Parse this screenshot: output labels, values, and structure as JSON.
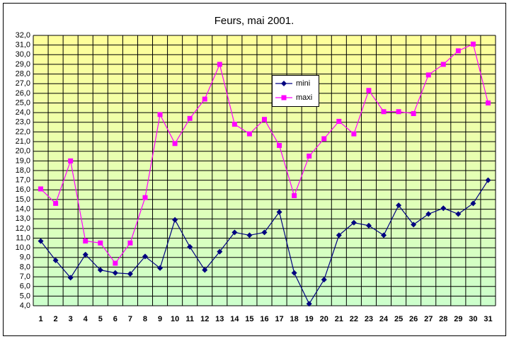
{
  "chart_data": {
    "type": "line",
    "title": "Feurs, mai 2001.",
    "categories": [
      "1",
      "2",
      "3",
      "4",
      "5",
      "6",
      "7",
      "8",
      "9",
      "10",
      "11",
      "12",
      "13",
      "14",
      "15",
      "16",
      "17",
      "18",
      "19",
      "20",
      "21",
      "22",
      "23",
      "24",
      "25",
      "26",
      "27",
      "28",
      "29",
      "30",
      "31"
    ],
    "series": [
      {
        "name": "mini",
        "color": "#000080",
        "marker": "diamond",
        "values": [
          10.7,
          8.7,
          6.9,
          9.3,
          7.7,
          7.4,
          7.3,
          9.1,
          7.9,
          12.9,
          10.1,
          7.7,
          9.6,
          11.6,
          11.3,
          11.6,
          13.7,
          7.4,
          4.2,
          6.7,
          11.3,
          12.6,
          12.3,
          11.3,
          14.4,
          12.4,
          13.5,
          14.1,
          13.5,
          14.6,
          17.0
        ]
      },
      {
        "name": "maxi",
        "color": "#ff00ff",
        "marker": "square",
        "values": [
          16.1,
          14.6,
          19.0,
          10.7,
          10.5,
          8.4,
          10.5,
          15.2,
          23.8,
          20.8,
          23.4,
          25.4,
          29.0,
          22.8,
          21.8,
          23.3,
          20.6,
          15.4,
          19.5,
          21.3,
          23.1,
          21.8,
          26.3,
          24.1,
          24.1,
          23.9,
          27.9,
          29.0,
          30.4,
          31.1,
          25.0
        ]
      }
    ],
    "ylim": [
      4,
      32
    ],
    "yticks": [
      {
        "value": 4,
        "label": "4,0"
      },
      {
        "value": 5,
        "label": "5,0"
      },
      {
        "value": 6,
        "label": "6,0"
      },
      {
        "value": 7,
        "label": "7,0"
      },
      {
        "value": 8,
        "label": "8,0"
      },
      {
        "value": 9,
        "label": "9,0"
      },
      {
        "value": 10,
        "label": "10,0"
      },
      {
        "value": 11,
        "label": "11,0"
      },
      {
        "value": 12,
        "label": "12,0"
      },
      {
        "value": 13,
        "label": "13,0"
      },
      {
        "value": 14,
        "label": "14,0"
      },
      {
        "value": 15,
        "label": "15,0"
      },
      {
        "value": 16,
        "label": "16,0"
      },
      {
        "value": 17,
        "label": "17,0"
      },
      {
        "value": 18,
        "label": "18,0"
      },
      {
        "value": 19,
        "label": "19,0"
      },
      {
        "value": 20,
        "label": "20,0"
      },
      {
        "value": 21,
        "label": "21,0"
      },
      {
        "value": 22,
        "label": "22,0"
      },
      {
        "value": 23,
        "label": "23,0"
      },
      {
        "value": 24,
        "label": "24,0"
      },
      {
        "value": 25,
        "label": "25,0"
      },
      {
        "value": 26,
        "label": "26,0"
      },
      {
        "value": 27,
        "label": "27,0"
      },
      {
        "value": 28,
        "label": "28,0"
      },
      {
        "value": 29,
        "label": "29,0"
      },
      {
        "value": 30,
        "label": "30,0"
      },
      {
        "value": 31,
        "label": "31,0"
      },
      {
        "value": 32,
        "label": "32,0"
      }
    ],
    "grid": true
  }
}
